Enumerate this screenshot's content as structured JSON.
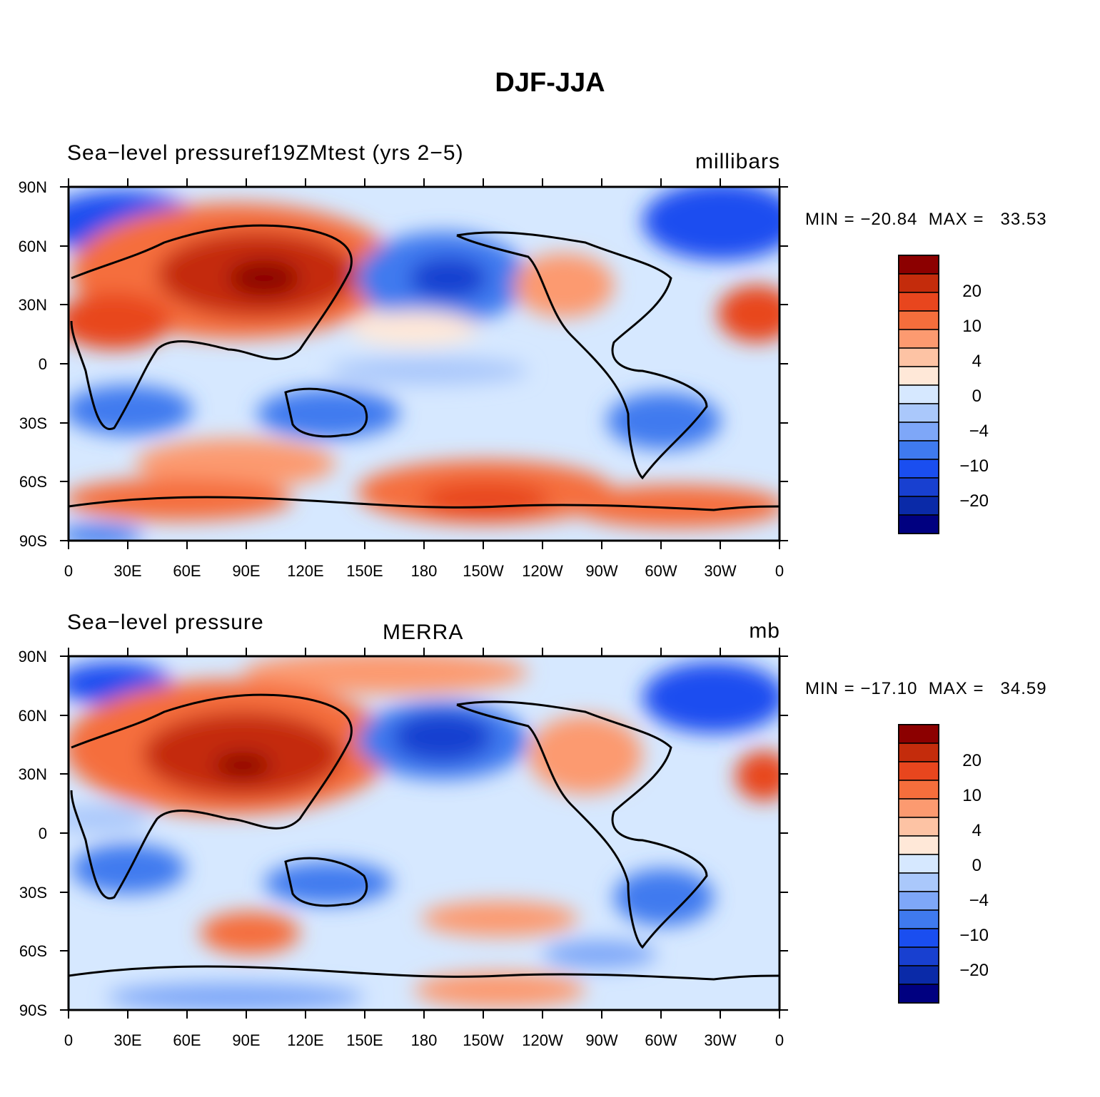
{
  "figure_title": "DJF-JJA",
  "axes": {
    "lat_labels": [
      "90N",
      "60N",
      "30N",
      "0",
      "30S",
      "60S",
      "90S"
    ],
    "lon_labels": [
      "0",
      "30E",
      "60E",
      "90E",
      "120E",
      "150E",
      "180",
      "150W",
      "120W",
      "90W",
      "60W",
      "30W",
      "0"
    ]
  },
  "colorbar": {
    "colors": [
      "#000080",
      "#0a2aa8",
      "#1840d0",
      "#1a4ef0",
      "#3f7aef",
      "#7ea7f8",
      "#aac8fb",
      "#d6e8ff",
      "#ffe8d8",
      "#fdc3a4",
      "#fc9a70",
      "#f56e3c",
      "#e8461e",
      "#c42c0c",
      "#8c0000"
    ],
    "labels": [
      "20",
      "10",
      "4",
      "0",
      "−4",
      "−10",
      "−20"
    ]
  },
  "panels": [
    {
      "title_left": "Sea−level pressuref19ZMtest (yrs 2−5)",
      "title_center": "",
      "units": "millibars",
      "min_label": "MIN =",
      "min_value": "−20.84",
      "max_label": "MAX =",
      "max_value": "33.53"
    },
    {
      "title_left": "Sea−level pressure",
      "title_center": "MERRA",
      "units": "mb",
      "min_label": "MIN =",
      "min_value": "−17.10",
      "max_label": "MAX =",
      "max_value": "34.59"
    }
  ]
}
